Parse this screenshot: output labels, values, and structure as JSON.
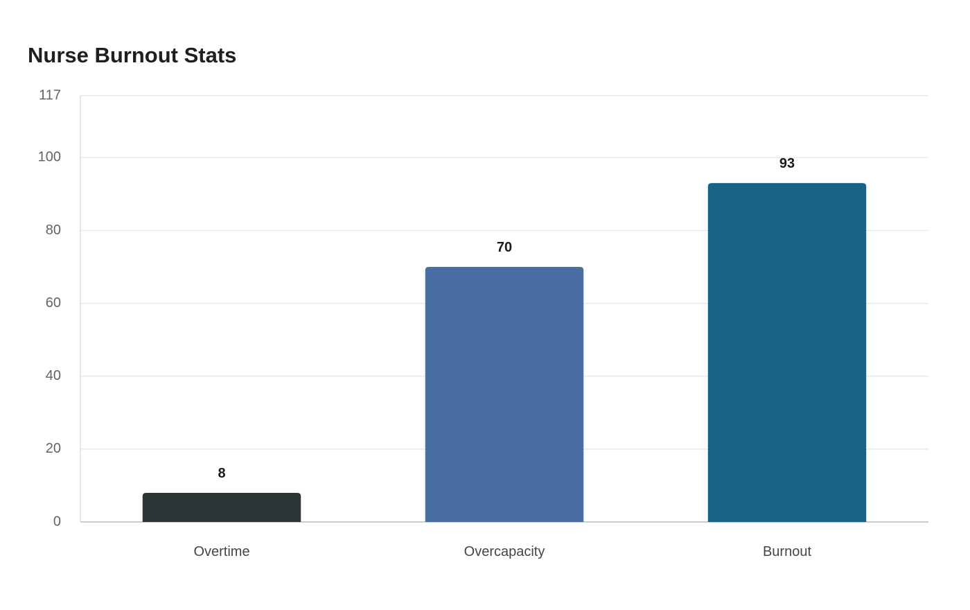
{
  "chart_data": {
    "type": "bar",
    "title": "Nurse Burnout Stats",
    "categories": [
      "Overtime",
      "Overcapacity",
      "Burnout"
    ],
    "values": [
      8,
      70,
      93
    ],
    "colors": [
      "#2c3436",
      "#4a6da3",
      "#186287"
    ],
    "xlabel": "",
    "ylabel": "",
    "ylim": [
      0,
      117
    ],
    "yticks": [
      0,
      20,
      40,
      60,
      80,
      100,
      117
    ],
    "grid": true,
    "data_labels": true
  }
}
